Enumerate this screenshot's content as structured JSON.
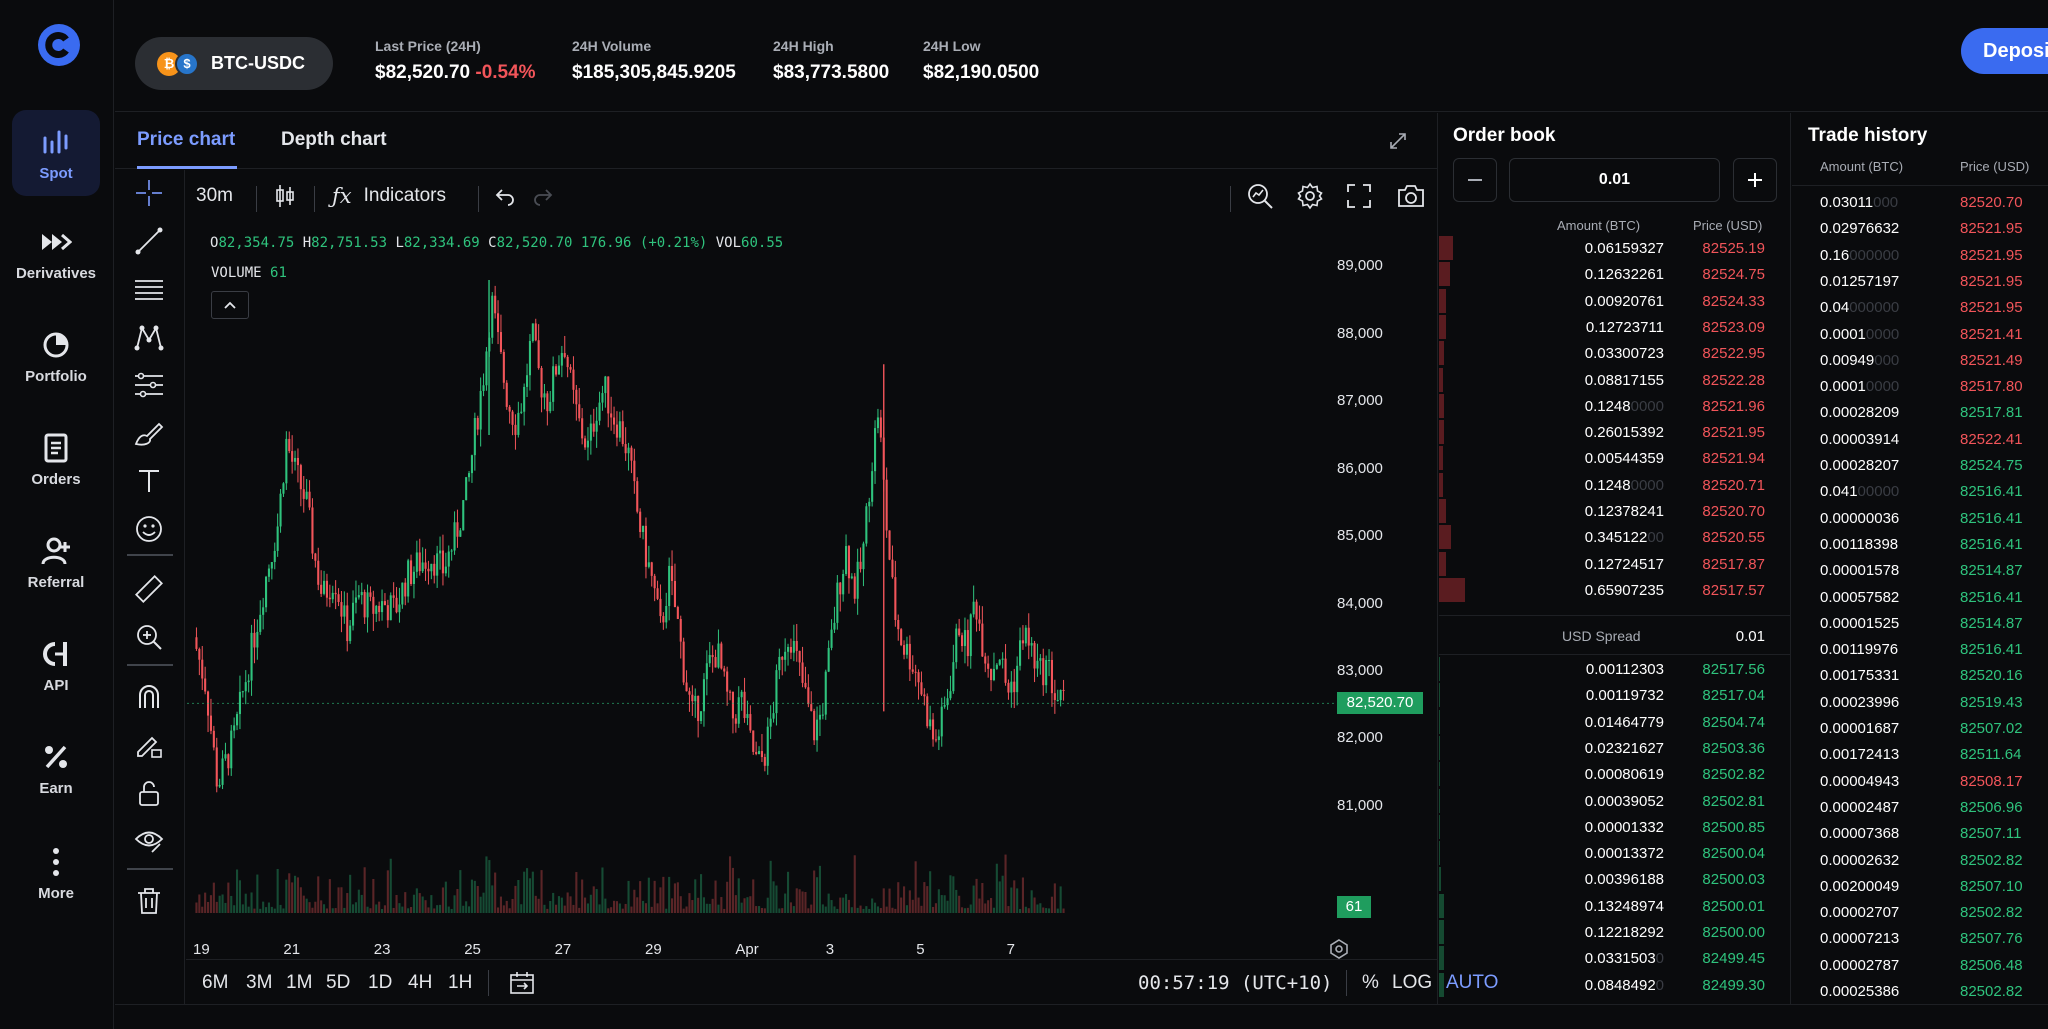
{
  "nav": {
    "items": [
      {
        "label": "Spot",
        "icon": "spot-icon"
      },
      {
        "label": "Derivatives",
        "icon": "derivatives-icon"
      },
      {
        "label": "Portfolio",
        "icon": "portfolio-icon"
      },
      {
        "label": "Orders",
        "icon": "orders-icon"
      },
      {
        "label": "Referral",
        "icon": "referral-icon"
      },
      {
        "label": "API",
        "icon": "api-icon"
      },
      {
        "label": "Earn",
        "icon": "earn-icon"
      },
      {
        "label": "More",
        "icon": "more-icon"
      }
    ],
    "active": "Spot"
  },
  "header": {
    "pair": "BTC-USDC",
    "stats": [
      {
        "label": "Last Price (24H)",
        "value": "$82,520.70",
        "change": "-0.54%"
      },
      {
        "label": "24H Volume",
        "value": "$185,305,845.9205"
      },
      {
        "label": "24H High",
        "value": "$83,773.5800"
      },
      {
        "label": "24H Low",
        "value": "$82,190.0500"
      }
    ],
    "deposit_label": "Deposit"
  },
  "chart_panel": {
    "tabs": [
      "Price chart",
      "Depth chart"
    ],
    "active_tab": "Price chart",
    "interval": "30m",
    "indicators_label": "Indicators",
    "ohlc": {
      "o": "82,354.75",
      "h": "82,751.53",
      "l": "82,334.69",
      "c": "82,520.70",
      "change": "176.96 (+0.21%)",
      "vol": "60.55"
    },
    "volume_label": "VOLUME",
    "volume_value": "61",
    "ranges": [
      "6M",
      "3M",
      "1M",
      "5D",
      "1D",
      "4H",
      "1H"
    ],
    "time": "00:57:19 (UTC+10)",
    "scale_options": [
      "%",
      "LOG",
      "AUTO"
    ],
    "active_scale": "AUTO",
    "accent": "#7c9cff",
    "up_color": "#2fc37d",
    "down_color": "#f2555a"
  },
  "chart_data": {
    "type": "candlestick",
    "x_ticks": [
      "19",
      "21",
      "23",
      "25",
      "27",
      "29",
      "Apr",
      "3",
      "5",
      "7"
    ],
    "y_ticks": [
      "89,000",
      "88,000",
      "87,000",
      "86,000",
      "85,000",
      "84,000",
      "83,000",
      "82,000",
      "81,000"
    ],
    "ylim": [
      80300,
      89200
    ],
    "last_price": "82,520.70",
    "last_volume": "61",
    "price_path": [
      [
        0,
        83500
      ],
      [
        0.3,
        82800
      ],
      [
        0.6,
        81300
      ],
      [
        1.0,
        82000
      ],
      [
        1.4,
        83200
      ],
      [
        1.8,
        84400
      ],
      [
        2.1,
        85200
      ],
      [
        2.3,
        86400
      ],
      [
        2.5,
        86000
      ],
      [
        2.8,
        85500
      ],
      [
        3.0,
        84700
      ],
      [
        3.2,
        84100
      ],
      [
        3.5,
        84400
      ],
      [
        3.8,
        83600
      ],
      [
        4.1,
        84100
      ],
      [
        4.4,
        83900
      ],
      [
        4.7,
        84000
      ],
      [
        5.0,
        83900
      ],
      [
        5.3,
        84400
      ],
      [
        5.6,
        84600
      ],
      [
        5.9,
        84700
      ],
      [
        6.2,
        84500
      ],
      [
        6.5,
        85000
      ],
      [
        6.8,
        85700
      ],
      [
        7.0,
        86600
      ],
      [
        7.2,
        87400
      ],
      [
        7.4,
        88500
      ],
      [
        7.6,
        87700
      ],
      [
        7.8,
        87000
      ],
      [
        8.0,
        86700
      ],
      [
        8.2,
        87100
      ],
      [
        8.4,
        88000
      ],
      [
        8.6,
        87300
      ],
      [
        8.8,
        87000
      ],
      [
        9.0,
        87500
      ],
      [
        9.2,
        87900
      ],
      [
        9.4,
        87100
      ],
      [
        9.6,
        86600
      ],
      [
        9.8,
        86300
      ],
      [
        10.0,
        86900
      ],
      [
        10.2,
        87200
      ],
      [
        10.4,
        86800
      ],
      [
        10.6,
        86600
      ],
      [
        10.8,
        86200
      ],
      [
        11.0,
        85400
      ],
      [
        11.2,
        84800
      ],
      [
        11.4,
        84300
      ],
      [
        11.6,
        83600
      ],
      [
        11.8,
        84400
      ],
      [
        12.0,
        83800
      ],
      [
        12.2,
        82900
      ],
      [
        12.4,
        82300
      ],
      [
        12.6,
        82600
      ],
      [
        12.8,
        83100
      ],
      [
        13.0,
        83300
      ],
      [
        13.2,
        82700
      ],
      [
        13.4,
        82300
      ],
      [
        13.6,
        82600
      ],
      [
        13.8,
        82000
      ],
      [
        14.0,
        81600
      ],
      [
        14.2,
        81800
      ],
      [
        14.4,
        82500
      ],
      [
        14.6,
        83300
      ],
      [
        14.8,
        83600
      ],
      [
        15.0,
        83100
      ],
      [
        15.2,
        82600
      ],
      [
        15.4,
        82100
      ],
      [
        15.6,
        82400
      ],
      [
        15.8,
        83300
      ],
      [
        16.0,
        84200
      ],
      [
        16.2,
        84800
      ],
      [
        16.4,
        84200
      ],
      [
        16.6,
        84600
      ],
      [
        16.8,
        85900
      ],
      [
        17.0,
        86900
      ],
      [
        17.2,
        85200
      ],
      [
        17.4,
        83900
      ],
      [
        17.6,
        83400
      ],
      [
        17.8,
        83200
      ],
      [
        18.0,
        82900
      ],
      [
        18.2,
        82400
      ],
      [
        18.4,
        81900
      ],
      [
        18.6,
        82300
      ],
      [
        18.8,
        82900
      ],
      [
        19.0,
        83700
      ],
      [
        19.2,
        83300
      ],
      [
        19.4,
        84100
      ],
      [
        19.6,
        83400
      ],
      [
        19.8,
        83000
      ],
      [
        20.0,
        83300
      ],
      [
        20.2,
        82700
      ],
      [
        20.4,
        82900
      ],
      [
        20.6,
        83600
      ],
      [
        20.8,
        83300
      ],
      [
        21.0,
        82950
      ],
      [
        21.2,
        83100
      ],
      [
        21.4,
        82600
      ],
      [
        21.6,
        82520
      ]
    ]
  },
  "orderbook": {
    "title": "Order book",
    "increment": "0.01",
    "headers": [
      "Amount (BTC)",
      "Price (USD)"
    ],
    "asks": [
      {
        "amount": "0.06159327",
        "price": "82525.19",
        "depth": 0.04
      },
      {
        "amount": "0.12632261",
        "price": "82524.75",
        "depth": 0.03
      },
      {
        "amount": "0.00920761",
        "price": "82524.33",
        "depth": 0.02
      },
      {
        "amount": "0.12723711",
        "price": "82523.09",
        "depth": 0.02
      },
      {
        "amount": "0.03300723",
        "price": "82522.95",
        "depth": 0.015
      },
      {
        "amount": "0.08817155",
        "price": "82522.28",
        "depth": 0.012
      },
      {
        "amount": "0.1248",
        "dim": "0000",
        "price": "82521.96",
        "depth": 0.015
      },
      {
        "amount": "0.26015392",
        "price": "82521.95",
        "depth": 0.015
      },
      {
        "amount": "0.00544359",
        "price": "82521.94",
        "depth": 0.012
      },
      {
        "amount": "0.1248",
        "dim": "0000",
        "price": "82520.71",
        "depth": 0.012
      },
      {
        "amount": "0.12378241",
        "price": "82520.70",
        "depth": 0.02
      },
      {
        "amount": "0.345122",
        "dim": "00",
        "price": "82520.55",
        "depth": 0.035
      },
      {
        "amount": "0.12724517",
        "price": "82517.87",
        "depth": 0.02
      },
      {
        "amount": "0.65907235",
        "price": "82517.57",
        "depth": 0.075
      }
    ],
    "spread_label": "USD Spread",
    "spread_value": "0.01",
    "bids": [
      {
        "amount": "0.00112303",
        "price": "82517.56",
        "depth": 0.003
      },
      {
        "amount": "0.00119732",
        "price": "82517.04",
        "depth": 0.003
      },
      {
        "amount": "0.01464779",
        "price": "82504.74",
        "depth": 0.003
      },
      {
        "amount": "0.02321627",
        "price": "82503.36",
        "depth": 0.003
      },
      {
        "amount": "0.00080619",
        "price": "82502.82",
        "depth": 0.003
      },
      {
        "amount": "0.00039052",
        "price": "82502.81",
        "depth": 0.003
      },
      {
        "amount": "0.00001332",
        "price": "82500.85",
        "depth": 0.003
      },
      {
        "amount": "0.00013372",
        "price": "82500.04",
        "depth": 0.003
      },
      {
        "amount": "0.00396188",
        "price": "82500.03",
        "depth": 0.005
      },
      {
        "amount": "0.13248974",
        "price": "82500.01",
        "depth": 0.015
      },
      {
        "amount": "0.12218292",
        "price": "82500.00",
        "depth": 0.015
      },
      {
        "amount": "0.0331503",
        "dim": "0",
        "price": "82499.45",
        "depth": 0.015
      },
      {
        "amount": "0.0848492",
        "dim": "0",
        "price": "82499.30",
        "depth": 0.015
      }
    ]
  },
  "trade_history": {
    "title": "Trade history",
    "headers": [
      "Amount (BTC)",
      "Price (USD)"
    ],
    "rows": [
      {
        "amount": "0.03011",
        "dim": "000",
        "price": "82520.70",
        "side": "sell"
      },
      {
        "amount": "0.02976632",
        "price": "82521.95",
        "side": "sell"
      },
      {
        "amount": "0.16",
        "dim": "000000",
        "price": "82521.95",
        "side": "sell"
      },
      {
        "amount": "0.01257197",
        "price": "82521.95",
        "side": "sell"
      },
      {
        "amount": "0.04",
        "dim": "000000",
        "price": "82521.95",
        "side": "sell"
      },
      {
        "amount": "0.0001",
        "dim": "0000",
        "price": "82521.41",
        "side": "sell"
      },
      {
        "amount": "0.00949",
        "dim": "000",
        "price": "82521.49",
        "side": "sell"
      },
      {
        "amount": "0.0001",
        "dim": "0000",
        "price": "82517.80",
        "side": "sell"
      },
      {
        "amount": "0.00028209",
        "price": "82517.81",
        "side": "buy"
      },
      {
        "amount": "0.00003914",
        "price": "82522.41",
        "side": "sell"
      },
      {
        "amount": "0.00028207",
        "price": "82524.75",
        "side": "buy"
      },
      {
        "amount": "0.041",
        "dim": "00000",
        "price": "82516.41",
        "side": "buy"
      },
      {
        "amount": "0.00000036",
        "price": "82516.41",
        "side": "buy"
      },
      {
        "amount": "0.00118398",
        "price": "82516.41",
        "side": "buy"
      },
      {
        "amount": "0.00001578",
        "price": "82514.87",
        "side": "buy"
      },
      {
        "amount": "0.00057582",
        "price": "82516.41",
        "side": "buy"
      },
      {
        "amount": "0.00001525",
        "price": "82514.87",
        "side": "buy"
      },
      {
        "amount": "0.00119976",
        "price": "82516.41",
        "side": "buy"
      },
      {
        "amount": "0.00175331",
        "price": "82520.16",
        "side": "buy"
      },
      {
        "amount": "0.00023996",
        "price": "82519.43",
        "side": "buy"
      },
      {
        "amount": "0.00001687",
        "price": "82507.02",
        "side": "buy"
      },
      {
        "amount": "0.00172413",
        "price": "82511.64",
        "side": "buy"
      },
      {
        "amount": "0.00004943",
        "price": "82508.17",
        "side": "sell"
      },
      {
        "amount": "0.00002487",
        "price": "82506.96",
        "side": "buy"
      },
      {
        "amount": "0.00007368",
        "price": "82507.11",
        "side": "buy"
      },
      {
        "amount": "0.00002632",
        "price": "82502.82",
        "side": "buy"
      },
      {
        "amount": "0.00200049",
        "price": "82507.10",
        "side": "buy"
      },
      {
        "amount": "0.00002707",
        "price": "82502.82",
        "side": "buy"
      },
      {
        "amount": "0.00007213",
        "price": "82507.76",
        "side": "buy"
      },
      {
        "amount": "0.00002787",
        "price": "82506.48",
        "side": "buy"
      },
      {
        "amount": "0.00025386",
        "price": "82502.82",
        "side": "buy"
      }
    ]
  }
}
